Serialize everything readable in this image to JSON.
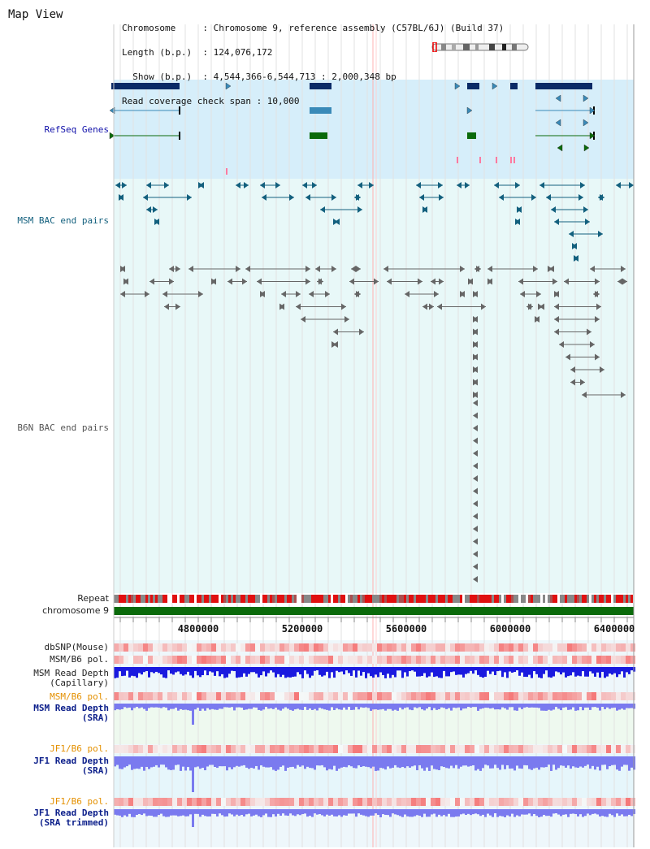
{
  "page": {
    "title": "Map View"
  },
  "header": {
    "lines": [
      "Chromosome     : Chromosome 9, reference assembly (C57BL/6J) (Build 37)",
      "Length (b.p.)  : 124,076,172",
      "  Show (b.p.)  : 4,544,366-6,544,713 : 2,000,348 bp",
      "Read coverage check span : 10,000"
    ]
  },
  "tracks": {
    "refseq": "RefSeq Genes",
    "msm_bac": "MSM BAC end pairs",
    "b6n_bac": "B6N BAC end pairs",
    "repeat": "Repeat",
    "chromosome": "chromosome 9",
    "dbsnp": "dbSNP(Mouse)",
    "msm_b6_pol_1": "MSM/B6 pol.",
    "msm_read_depth_cap_1": "MSM Read Depth",
    "msm_read_depth_cap_2": "(Capillary)",
    "msm_b6_pol_2": "MSM/B6 pol.",
    "msm_read_depth_sra_1": "MSM Read Depth",
    "msm_read_depth_sra_2": "(SRA)",
    "jf1_b6_pol_1": "JF1/B6 pol.",
    "jf1_read_depth_sra_1": "JF1 Read Depth",
    "jf1_read_depth_sra_2": "(SRA)",
    "jf1_b6_pol_2": "JF1/B6 pol.",
    "jf1_read_depth_trim_1": "JF1 Read Depth",
    "jf1_read_depth_trim_2": "(SRA trimmed)"
  },
  "axis": {
    "ticks": [
      "4800000",
      "5200000",
      "5600000",
      "6000000",
      "6400000"
    ]
  },
  "colors": {
    "refseq_bg": "#d6eefa",
    "bac_bg": "#e8f8f8",
    "refseq_navy": "#0a2a66",
    "refseq_blue": "#3a8ab8",
    "refseq_green": "#0a6a0a",
    "msm_bac": "#13607e",
    "b6n_bac": "#666666",
    "chromosome_bar": "#0a6a0a",
    "depth_blue": "#1a1adf",
    "depth_light": "#7a7aef",
    "polymorphism": "#ef6a6a"
  }
}
